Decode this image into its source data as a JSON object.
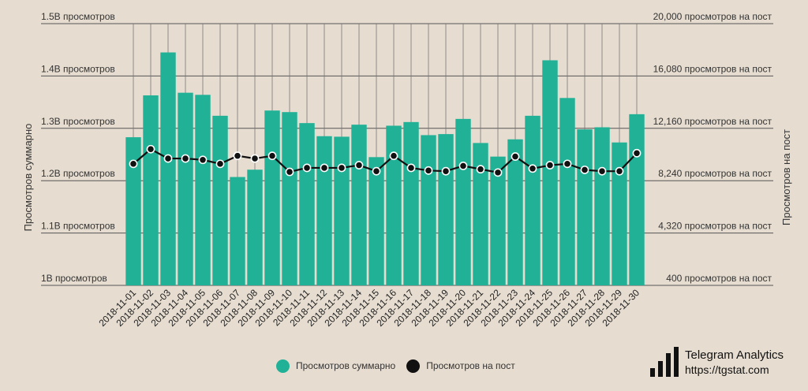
{
  "chart_data": {
    "type": "bar",
    "categories": [
      "2018-11-01",
      "2018-11-02",
      "2018-11-03",
      "2018-11-04",
      "2018-11-05",
      "2018-11-06",
      "2018-11-07",
      "2018-11-08",
      "2018-11-09",
      "2018-11-10",
      "2018-11-11",
      "2018-11-12",
      "2018-11-13",
      "2018-11-14",
      "2018-11-15",
      "2018-11-16",
      "2018-11-17",
      "2018-11-18",
      "2018-11-19",
      "2018-11-20",
      "2018-11-21",
      "2018-11-22",
      "2018-11-23",
      "2018-11-24",
      "2018-11-25",
      "2018-11-26",
      "2018-11-27",
      "2018-11-28",
      "2018-11-29",
      "2018-11-30"
    ],
    "series": [
      {
        "name": "Просмотров суммарно",
        "type": "bar",
        "axis": "left",
        "color": "#20b196",
        "values": [
          1.283,
          1.363,
          1.445,
          1.368,
          1.364,
          1.324,
          1.207,
          1.221,
          1.334,
          1.331,
          1.31,
          1.285,
          1.284,
          1.307,
          1.245,
          1.305,
          1.312,
          1.287,
          1.289,
          1.318,
          1.272,
          1.246,
          1.279,
          1.324,
          1.43,
          1.358,
          1.298,
          1.302,
          1.273,
          1.327
        ]
      },
      {
        "name": "Просмотров на пост",
        "type": "line",
        "axis": "right",
        "color": "#111111",
        "values": [
          9500,
          10600,
          9900,
          9900,
          9800,
          9500,
          10100,
          9900,
          10100,
          8900,
          9200,
          9200,
          9200,
          9400,
          8950,
          10100,
          9200,
          9000,
          8950,
          9350,
          9100,
          8850,
          10050,
          9150,
          9400,
          9500,
          9050,
          8950,
          8950,
          10300
        ]
      }
    ],
    "y_left": {
      "label": "Просмотров суммарно",
      "ylim": [
        1.0,
        1.5
      ],
      "ticks": [
        1.0,
        1.1,
        1.2,
        1.3,
        1.4,
        1.5
      ],
      "tick_labels": [
        "1B просмотров",
        "1.1B просмотров",
        "1.2B просмотров",
        "1.3B просмотров",
        "1.4B просмотров",
        "1.5B просмотров"
      ]
    },
    "y_right": {
      "label": "Просмотров на пост",
      "ylim": [
        400,
        20000
      ],
      "ticks": [
        400,
        4320,
        8240,
        12160,
        16080,
        20000
      ],
      "tick_labels": [
        "400 просмотров на пост",
        "4,320 просмотров на пост",
        "8,240 просмотров на пост",
        "12,160 просмотров на пост",
        "16,080 просмотров на пост",
        "20,000 просмотров на пост"
      ]
    },
    "grid": true,
    "legend_position": "bottom-center"
  },
  "legend": {
    "items": [
      {
        "label": "Просмотров суммарно",
        "color": "#20b196"
      },
      {
        "label": "Просмотров на пост",
        "color": "#111111"
      }
    ]
  },
  "brand": {
    "name": "Telegram Analytics",
    "url": "https://tgstat.com"
  },
  "colors": {
    "background": "#e6ddd0",
    "bar": "#20b196",
    "line": "#111111",
    "grid": "#555555"
  }
}
